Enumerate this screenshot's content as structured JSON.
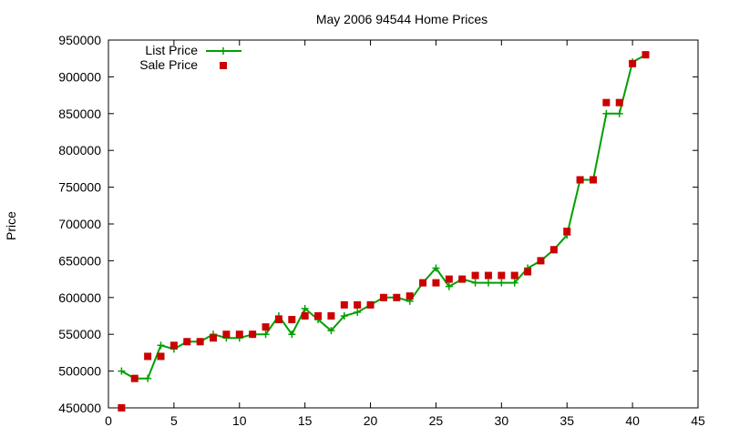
{
  "chart_data": {
    "type": "line",
    "title": "May 2006 94544 Home Prices",
    "xlabel": "",
    "ylabel": "Price",
    "xlim": [
      0,
      45
    ],
    "ylim": [
      450000,
      950000
    ],
    "xticks": [
      0,
      5,
      10,
      15,
      20,
      25,
      30,
      35,
      40,
      45
    ],
    "yticks": [
      450000,
      500000,
      550000,
      600000,
      650000,
      700000,
      750000,
      800000,
      850000,
      900000,
      950000
    ],
    "grid": false,
    "legend_position": "top-left",
    "series": [
      {
        "name": "List Price",
        "style": "line-with-plus-markers",
        "color": "#00a000",
        "x": [
          1,
          2,
          3,
          4,
          5,
          6,
          7,
          8,
          9,
          10,
          11,
          12,
          13,
          14,
          15,
          16,
          17,
          18,
          19,
          20,
          21,
          22,
          23,
          24,
          25,
          26,
          27,
          28,
          29,
          30,
          31,
          32,
          33,
          34,
          35,
          36,
          37,
          38,
          39,
          40,
          41
        ],
        "values": [
          500000,
          490000,
          490000,
          535000,
          530000,
          540000,
          540000,
          550000,
          545000,
          545000,
          550000,
          550000,
          575000,
          550000,
          585000,
          570000,
          555000,
          575000,
          580000,
          590000,
          600000,
          600000,
          595000,
          620000,
          640000,
          615000,
          625000,
          620000,
          620000,
          620000,
          620000,
          640000,
          650000,
          665000,
          685000,
          760000,
          760000,
          850000,
          850000,
          920000,
          930000
        ]
      },
      {
        "name": "Sale Price",
        "style": "square-markers",
        "color": "#cc0000",
        "x": [
          1,
          2,
          3,
          4,
          5,
          6,
          7,
          8,
          9,
          10,
          11,
          12,
          13,
          14,
          15,
          16,
          17,
          18,
          19,
          20,
          21,
          22,
          23,
          24,
          25,
          26,
          27,
          28,
          29,
          30,
          31,
          32,
          33,
          34,
          35,
          36,
          37,
          38,
          39,
          40,
          41
        ],
        "values": [
          450000,
          490000,
          520000,
          520000,
          535000,
          540000,
          540000,
          545000,
          550000,
          550000,
          550000,
          560000,
          570000,
          570000,
          575000,
          575000,
          575000,
          590000,
          590000,
          590000,
          600000,
          600000,
          602000,
          620000,
          620000,
          625000,
          625000,
          630000,
          630000,
          630000,
          630000,
          635000,
          650000,
          665000,
          690000,
          760000,
          760000,
          865000,
          865000,
          918000,
          930000
        ]
      }
    ]
  }
}
